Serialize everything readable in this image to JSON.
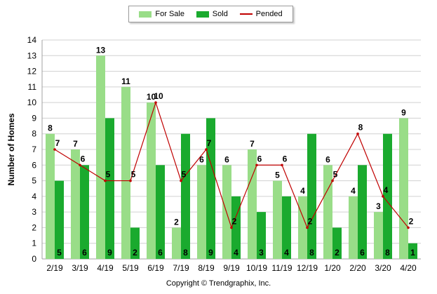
{
  "chart_data": {
    "type": "bar",
    "categories": [
      "2/19",
      "3/19",
      "4/19",
      "5/19",
      "6/19",
      "7/19",
      "8/19",
      "9/19",
      "10/19",
      "11/19",
      "12/19",
      "1/20",
      "2/20",
      "3/20",
      "4/20"
    ],
    "series": [
      {
        "name": "For Sale",
        "type": "bar",
        "color": "#99dd88",
        "values": [
          8,
          7,
          13,
          11,
          10,
          2,
          6,
          6,
          7,
          5,
          4,
          6,
          4,
          3,
          9
        ]
      },
      {
        "name": "Sold",
        "type": "bar",
        "color": "#1aaa2e",
        "values": [
          5,
          6,
          9,
          2,
          6,
          8,
          9,
          4,
          3,
          4,
          8,
          2,
          6,
          8,
          1
        ]
      },
      {
        "name": "Pended",
        "type": "line",
        "color": "#c00000",
        "values": [
          7,
          6,
          5,
          5,
          10,
          5,
          7,
          2,
          6,
          6,
          2,
          5,
          8,
          4,
          2
        ]
      }
    ],
    "ylabel": "Number of Homes",
    "xlabel": "",
    "ylim": [
      0,
      14
    ],
    "yticks": [
      0,
      1,
      2,
      3,
      4,
      5,
      6,
      7,
      8,
      9,
      10,
      11,
      12,
      13,
      14
    ],
    "grid": true,
    "legend_position": "top-center"
  },
  "footer": {
    "copyright": "Copyright © Trendgraphix, Inc."
  }
}
